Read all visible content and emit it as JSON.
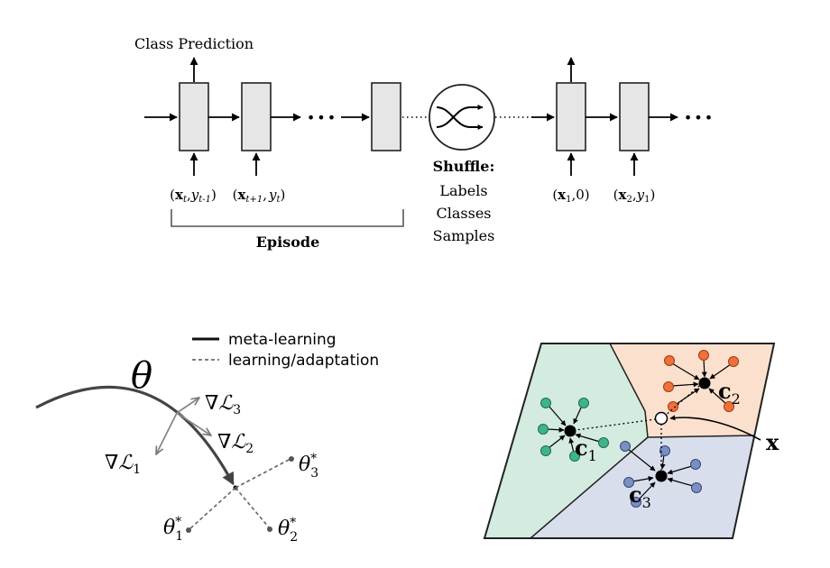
{
  "rnn_diagram": {
    "class_prediction_label": "Class Prediction",
    "ellipsis": "•••",
    "input_labels": [
      "(x_t, y_t-1)",
      "(x_t+1, y_t)",
      "(x_1, 0)",
      "(x_2, y_1)"
    ],
    "episode_label": "Episode",
    "shuffle": {
      "title": "Shuffle:",
      "items": [
        "Labels",
        "Classes",
        "Samples"
      ]
    }
  },
  "meta_learning_diagram": {
    "legend": {
      "solid": "meta-learning",
      "dashed": "learning/adaptation"
    },
    "theta_label": "θ",
    "gradient_labels": [
      "∇L_1",
      "∇L_2",
      "∇L_3"
    ],
    "optimum_labels": [
      "θ*_1",
      "θ*_2",
      "θ*_3"
    ]
  },
  "prototype_diagram": {
    "query_label": "x",
    "prototype_labels": [
      "c_1",
      "c_2",
      "c_3"
    ],
    "colors": {
      "region_green": "#d4ebdf",
      "region_orange": "#fbe1cd",
      "region_blue": "#d9deec",
      "point_green": "#3fb38b",
      "point_orange": "#f0703a",
      "point_blue": "#7a8fc4"
    }
  }
}
